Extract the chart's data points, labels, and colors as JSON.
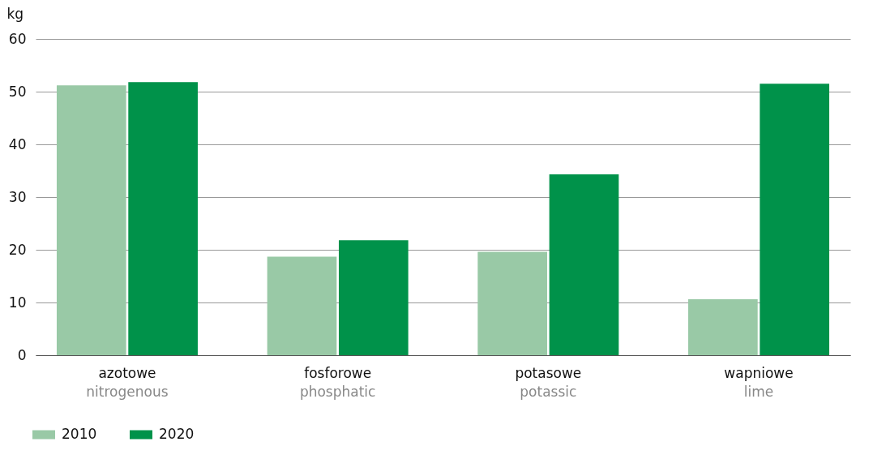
{
  "chart_data": {
    "type": "bar",
    "ylabel": "kg",
    "categories": [
      "azotowe\nnitrogenous",
      "fosforowe\nphosphatic",
      "potasowe\npotassic",
      "wapniowe\nlime"
    ],
    "series": [
      {
        "name": "2010",
        "color": "#99c9a6",
        "values": [
          51.2,
          18.7,
          19.6,
          10.6
        ]
      },
      {
        "name": "2020",
        "color": "#00924a",
        "values": [
          51.8,
          21.8,
          34.3,
          51.5
        ]
      }
    ],
    "ylim": [
      0,
      60
    ],
    "yticks": [
      0,
      10,
      20,
      30,
      40,
      50,
      60
    ],
    "grid": "y",
    "legend": "bottom"
  }
}
